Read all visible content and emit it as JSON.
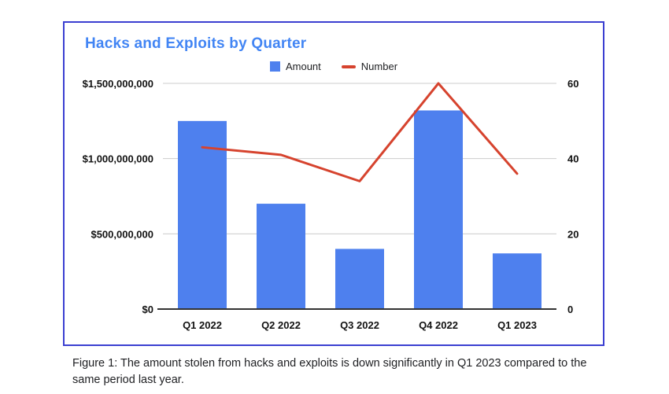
{
  "chart_data": {
    "type": "bar",
    "title": "Hacks and Exploits by Quarter",
    "categories": [
      "Q1 2022",
      "Q2 2022",
      "Q3 2022",
      "Q4 2022",
      "Q1 2023"
    ],
    "series": [
      {
        "name": "Amount",
        "type": "bar",
        "axis": "left",
        "color": "#4e80ee",
        "values": [
          1250000000,
          700000000,
          400000000,
          1320000000,
          370000000
        ]
      },
      {
        "name": "Number",
        "type": "line",
        "axis": "right",
        "color": "#d6432e",
        "values": [
          43,
          41,
          34,
          60,
          36
        ]
      }
    ],
    "left_axis": {
      "ticks": [
        "$0",
        "$500,000,000",
        "$1,000,000,000",
        "$1,500,000,000"
      ],
      "tick_values": [
        0,
        500000000,
        1000000000,
        1500000000
      ],
      "min": 0,
      "max": 1500000000
    },
    "right_axis": {
      "ticks": [
        "0",
        "20",
        "40",
        "60"
      ],
      "tick_values": [
        0,
        20,
        40,
        60
      ],
      "min": 0,
      "max": 60
    },
    "grid": true,
    "legend_position": "top"
  },
  "caption": "Figure 1: The amount stolen from hacks and exploits is down significantly in Q1 2023 compared to the same period last year.",
  "colors": {
    "title": "#4285f4",
    "frame_border": "#3b3fd1",
    "bar": "#4e80ee",
    "line": "#d6432e",
    "gridline": "#cccccc",
    "axis_line": "#333333"
  }
}
